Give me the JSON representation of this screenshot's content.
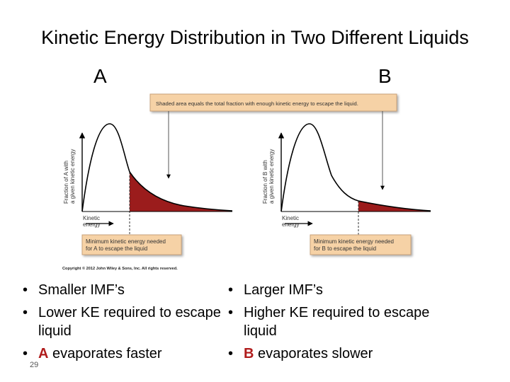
{
  "slide": {
    "title": "Kinetic Energy Distribution in Two Different Liquids",
    "page_number": "29"
  },
  "figure": {
    "label_a": "A",
    "label_b": "B",
    "callout_top": "Shaded area equals the total fraction with enough kinetic energy to escape the liquid.",
    "panel_a": {
      "y_axis_line1": "Fraction of A with",
      "y_axis_line2": "a given kinetic energy",
      "x_axis_line1": "Kinetic",
      "x_axis_line2": "energy",
      "callout_line1": "Minimum kinetic energy needed",
      "callout_line2": "for A to escape the liquid"
    },
    "panel_b": {
      "y_axis_line1": "Fraction of B with",
      "y_axis_line2": "a given kinetic energy",
      "x_axis_line1": "Kinetic",
      "x_axis_line2": "energy",
      "callout_line1": "Minimum kinetic energy needed",
      "callout_line2": "for B to escape the liquid"
    },
    "copyright": "Copyright © 2012 John Wiley & Sons, Inc. All rights reserved.",
    "colors": {
      "shade": "#9b1c1c",
      "callout_fill": "#f6d2a6",
      "callout_border": "#c9a27a",
      "curve": "#000000"
    }
  },
  "bullets_a": {
    "items": [
      {
        "text": "Smaller IMF’s"
      },
      {
        "text": "Lower KE required to escape liquid"
      },
      {
        "accent": "A",
        "text": " evaporates faster"
      }
    ]
  },
  "bullets_b": {
    "items": [
      {
        "text": "Larger IMF’s"
      },
      {
        "text": "Higher KE required to escape liquid"
      },
      {
        "accent": "B",
        "text": " evaporates slower"
      }
    ]
  }
}
